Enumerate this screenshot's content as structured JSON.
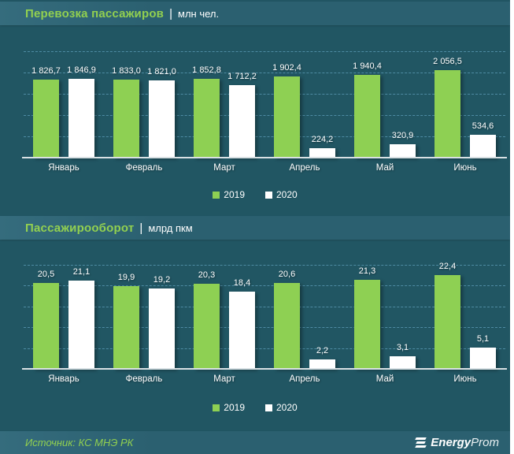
{
  "page": {
    "background": "#215663",
    "band_background": "#2d6370",
    "accent_green": "#92d050",
    "bar_green": "#8ed053",
    "bar_white": "#ffffff",
    "grid_color": "#4e8ba3",
    "axis_color": "#d9e1e4"
  },
  "chart_data": [
    {
      "type": "bar",
      "title": "Перевозка пассажиров",
      "separator": "|",
      "unit_label": "млн чел.",
      "categories": [
        "Январь",
        "Февраль",
        "Март",
        "Апрель",
        "Май",
        "Июнь"
      ],
      "series": [
        {
          "name": "2019",
          "color": "#8ed053",
          "values": [
            1826.7,
            1833.0,
            1852.8,
            1902.4,
            1940.4,
            2056.5
          ],
          "labels": [
            "1 826,7",
            "1 833,0",
            "1 852,8",
            "1 902,4",
            "1 940,4",
            "2 056,5"
          ]
        },
        {
          "name": "2020",
          "color": "#ffffff",
          "values": [
            1846.9,
            1821.0,
            1712.2,
            224.2,
            320.9,
            534.6
          ],
          "labels": [
            "1 846,9",
            "1 821,0",
            "1 712,2",
            "224,2",
            "320,9",
            "534,6"
          ]
        }
      ],
      "ylim": [
        0,
        2500
      ],
      "grid_step": 500,
      "grid": "dashed-horizontal",
      "legend_position": "bottom-center"
    },
    {
      "type": "bar",
      "title": "Пассажирооборот",
      "separator": "|",
      "unit_label": "млрд пкм",
      "categories": [
        "Январь",
        "Февраль",
        "Март",
        "Апрель",
        "Май",
        "Июнь"
      ],
      "series": [
        {
          "name": "2019",
          "color": "#8ed053",
          "values": [
            20.5,
            19.9,
            20.3,
            20.6,
            21.3,
            22.4
          ],
          "labels": [
            "20,5",
            "19,9",
            "20,3",
            "20,6",
            "21,3",
            "22,4"
          ]
        },
        {
          "name": "2020",
          "color": "#ffffff",
          "values": [
            21.1,
            19.2,
            18.4,
            2.2,
            3.1,
            5.1
          ],
          "labels": [
            "21,1",
            "19,2",
            "18,4",
            "2,2",
            "3,1",
            "5,1"
          ]
        }
      ],
      "ylim": [
        0,
        25
      ],
      "grid_step": 5,
      "grid": "dashed-horizontal",
      "legend_position": "bottom-center"
    }
  ],
  "legend": {
    "items": [
      {
        "label": "2019",
        "color": "#8ed053"
      },
      {
        "label": "2020",
        "color": "#ffffff"
      }
    ]
  },
  "footer": {
    "source": "Источник: КС МНЭ РК",
    "logo_bold": "Energy",
    "logo_light": "Prom"
  }
}
